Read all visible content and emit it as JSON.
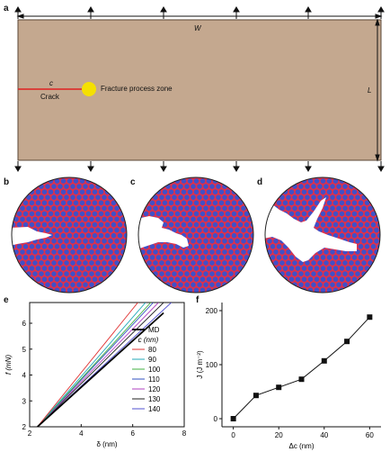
{
  "panel_a": {
    "label": "a",
    "width_symbol": "W",
    "length_symbol": "L",
    "crack_symbol": "c",
    "crack_label": "Crack",
    "fpz_label": "Fracture process zone",
    "colors": {
      "plate": "#c4a88f",
      "crack": "#e02020",
      "fpz": "#f5e000"
    }
  },
  "panel_b": {
    "label": "b"
  },
  "panel_c": {
    "label": "c"
  },
  "panel_d": {
    "label": "d"
  },
  "atom_colors": {
    "atom": "#4050c8",
    "bond": "#e0304a"
  },
  "panel_e": {
    "label": "e",
    "chart_data": {
      "type": "line",
      "xlabel": "δ (nm)",
      "ylabel": "f (mN)",
      "xlim": [
        2,
        8
      ],
      "ylim": [
        2,
        6.8
      ],
      "xticks": [
        "2",
        "4",
        "6",
        "8"
      ],
      "yticks": [
        "2",
        "3",
        "4",
        "5",
        "6"
      ],
      "legend_title": "c (nm)",
      "series": [
        {
          "name": "MD",
          "color": "#000000",
          "x": [
            2.3,
            7.2
          ],
          "y": [
            2.0,
            6.4
          ]
        },
        {
          "name": "80",
          "color": "#e03030",
          "x": [
            2.3,
            6.2
          ],
          "y": [
            2.0,
            6.8
          ]
        },
        {
          "name": "90",
          "color": "#20a8b8",
          "x": [
            2.3,
            6.5
          ],
          "y": [
            2.0,
            6.8
          ]
        },
        {
          "name": "100",
          "color": "#40b040",
          "x": [
            2.3,
            6.7
          ],
          "y": [
            2.0,
            6.8
          ]
        },
        {
          "name": "110",
          "color": "#3050c0",
          "x": [
            2.3,
            6.8
          ],
          "y": [
            2.0,
            6.8
          ]
        },
        {
          "name": "120",
          "color": "#b040c0",
          "x": [
            2.3,
            7.0
          ],
          "y": [
            2.0,
            6.8
          ]
        },
        {
          "name": "130",
          "color": "#202020",
          "x": [
            2.3,
            7.2
          ],
          "y": [
            2.0,
            6.8
          ]
        },
        {
          "name": "140",
          "color": "#5050d0",
          "x": [
            2.3,
            7.5
          ],
          "y": [
            2.0,
            6.8
          ]
        }
      ]
    }
  },
  "panel_f": {
    "label": "f",
    "chart_data": {
      "type": "line",
      "xlabel": "Δc (nm)",
      "ylabel": "J (J m⁻²)",
      "xlim": [
        -5,
        65
      ],
      "ylim": [
        -15,
        215
      ],
      "xticks": [
        "0",
        "20",
        "40",
        "60"
      ],
      "yticks": [
        "0",
        "100",
        "200"
      ],
      "x": [
        0,
        10,
        20,
        30,
        40,
        50,
        60
      ],
      "y": [
        0,
        43,
        58,
        73,
        107,
        143,
        188
      ]
    }
  }
}
